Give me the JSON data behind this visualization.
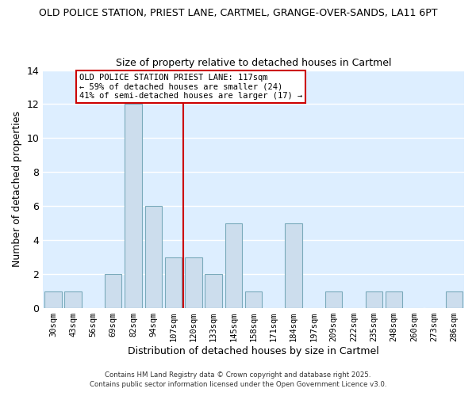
{
  "title_line1": "OLD POLICE STATION, PRIEST LANE, CARTMEL, GRANGE-OVER-SANDS, LA11 6PT",
  "title_line2": "Size of property relative to detached houses in Cartmel",
  "xlabel": "Distribution of detached houses by size in Cartmel",
  "ylabel": "Number of detached properties",
  "bar_labels": [
    "30sqm",
    "43sqm",
    "56sqm",
    "69sqm",
    "82sqm",
    "94sqm",
    "107sqm",
    "120sqm",
    "133sqm",
    "145sqm",
    "158sqm",
    "171sqm",
    "184sqm",
    "197sqm",
    "209sqm",
    "222sqm",
    "235sqm",
    "248sqm",
    "260sqm",
    "273sqm",
    "286sqm"
  ],
  "bar_values": [
    1,
    1,
    0,
    2,
    12,
    6,
    3,
    3,
    2,
    5,
    1,
    0,
    5,
    0,
    1,
    0,
    1,
    1,
    0,
    0,
    1
  ],
  "bar_color": "#ccdded",
  "bar_edge_color": "#7aaabb",
  "vline_color": "#cc0000",
  "ylim": [
    0,
    14
  ],
  "yticks": [
    0,
    2,
    4,
    6,
    8,
    10,
    12,
    14
  ],
  "annotation_title": "OLD POLICE STATION PRIEST LANE: 117sqm",
  "annotation_line2": "← 59% of detached houses are smaller (24)",
  "annotation_line3": "41% of semi-detached houses are larger (17) →",
  "annotation_box_color": "#ffffff",
  "annotation_box_edge": "#cc0000",
  "footer_line1": "Contains HM Land Registry data © Crown copyright and database right 2025.",
  "footer_line2": "Contains public sector information licensed under the Open Government Licence v3.0.",
  "fig_background_color": "#ffffff",
  "plot_background_color": "#ddeeff",
  "grid_color": "#ffffff"
}
